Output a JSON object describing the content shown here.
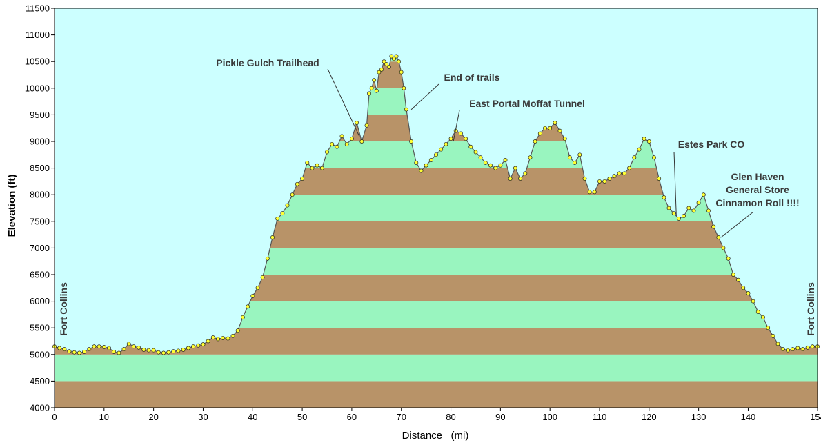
{
  "chart_data": {
    "type": "area",
    "title": "",
    "xlabel": "Distance   (mi)",
    "ylabel": "Elevation (ft)",
    "xlim": [
      0,
      154
    ],
    "ylim": [
      4000,
      11500
    ],
    "grid": false,
    "x_ticks": [
      0,
      10,
      20,
      30,
      40,
      50,
      60,
      70,
      80,
      90,
      100,
      110,
      120,
      130,
      140,
      154
    ],
    "y_ticks": [
      4000,
      4500,
      5000,
      5500,
      6000,
      6500,
      7000,
      7500,
      8000,
      8500,
      9000,
      9500,
      10000,
      10500,
      11000,
      11500
    ],
    "colors": {
      "background": "#ccffff",
      "band_green": "#99f5bf",
      "band_brown": "#b89368",
      "line": "#555555",
      "marker": "#ffff33",
      "leader": "#333333"
    },
    "series": [
      {
        "x": [
          0,
          1,
          2,
          3,
          4,
          5,
          6,
          7,
          8,
          9,
          10,
          11,
          12,
          13,
          14,
          15,
          16,
          17,
          18,
          19,
          20,
          21,
          22,
          23,
          24,
          25,
          26,
          27,
          28,
          29,
          30,
          31,
          32,
          33,
          34,
          35,
          36,
          37,
          38,
          39,
          40,
          41,
          42,
          43,
          44,
          45,
          46,
          47,
          48,
          49,
          50,
          51,
          52,
          53,
          54,
          55,
          56,
          57,
          58,
          59,
          60,
          61,
          62,
          63,
          63.5,
          64,
          64.5,
          65,
          65.5,
          66,
          66.5,
          67,
          67.5,
          68,
          68.5,
          69,
          69.5,
          70,
          70.5,
          71,
          72,
          73,
          74,
          75,
          76,
          77,
          78,
          79,
          80,
          81,
          82,
          83,
          84,
          85,
          86,
          87,
          88,
          89,
          90,
          91,
          92,
          93,
          94,
          95,
          96,
          97,
          98,
          99,
          100,
          101,
          102,
          103,
          104,
          105,
          106,
          107,
          108,
          109,
          110,
          111,
          112,
          113,
          114,
          115,
          116,
          117,
          118,
          119,
          120,
          121,
          122,
          123,
          124,
          125,
          126,
          127,
          128,
          129,
          130,
          131,
          132,
          133,
          134,
          135,
          136,
          137,
          138,
          139,
          140,
          141,
          142,
          143,
          144,
          145,
          146,
          147,
          148,
          149,
          150,
          151,
          152,
          153,
          154
        ],
        "y": [
          5150,
          5120,
          5100,
          5060,
          5040,
          5030,
          5050,
          5100,
          5150,
          5150,
          5140,
          5120,
          5050,
          5030,
          5100,
          5200,
          5150,
          5130,
          5090,
          5080,
          5080,
          5040,
          5030,
          5040,
          5060,
          5070,
          5090,
          5120,
          5150,
          5170,
          5190,
          5250,
          5320,
          5290,
          5310,
          5300,
          5350,
          5450,
          5700,
          5900,
          6100,
          6250,
          6450,
          6800,
          7200,
          7550,
          7650,
          7800,
          8000,
          8200,
          8300,
          8600,
          8500,
          8550,
          8500,
          8800,
          8950,
          8900,
          9100,
          8950,
          9050,
          9350,
          9000,
          9300,
          9900,
          10000,
          10150,
          9950,
          10300,
          10350,
          10500,
          10450,
          10400,
          10600,
          10550,
          10600,
          10500,
          10300,
          10000,
          9600,
          9000,
          8600,
          8450,
          8550,
          8650,
          8750,
          8850,
          8950,
          9050,
          9200,
          9150,
          9050,
          8900,
          8800,
          8700,
          8600,
          8550,
          8500,
          8550,
          8650,
          8300,
          8500,
          8300,
          8400,
          8700,
          9000,
          9150,
          9250,
          9250,
          9350,
          9200,
          9050,
          8700,
          8600,
          8750,
          8300,
          8050,
          8050,
          8250,
          8250,
          8300,
          8350,
          8400,
          8400,
          8500,
          8700,
          8850,
          9050,
          9000,
          8700,
          8300,
          7950,
          7750,
          7650,
          7550,
          7600,
          7750,
          7700,
          7850,
          8000,
          7700,
          7400,
          7200,
          7000,
          6800,
          6500,
          6400,
          6250,
          6150,
          6000,
          5800,
          5700,
          5500,
          5350,
          5200,
          5100,
          5080,
          5100,
          5120,
          5100,
          5130,
          5150,
          5150
        ]
      }
    ],
    "annotations": [
      {
        "text": "Pickle Gulch Trailhead",
        "x": 61.5,
        "y": 9100
      },
      {
        "text": "End of trails",
        "x": 72,
        "y": 9600
      },
      {
        "text": "East Portal Moffat Tunnel",
        "x": 80.5,
        "y": 9000
      },
      {
        "text": "Estes Park CO",
        "x": 125.5,
        "y": 7600
      },
      {
        "text": "Glen Haven",
        "x": 134.5,
        "y": 7200
      },
      {
        "text": "General Store",
        "x": 134.5,
        "y": 7200
      },
      {
        "text": "Cinnamon Roll !!!!",
        "x": 134.5,
        "y": 7200
      }
    ],
    "vertical_labels": [
      {
        "text": "Fort Collins",
        "x": 0
      },
      {
        "text": "Fort Collins",
        "x": 154
      }
    ]
  }
}
